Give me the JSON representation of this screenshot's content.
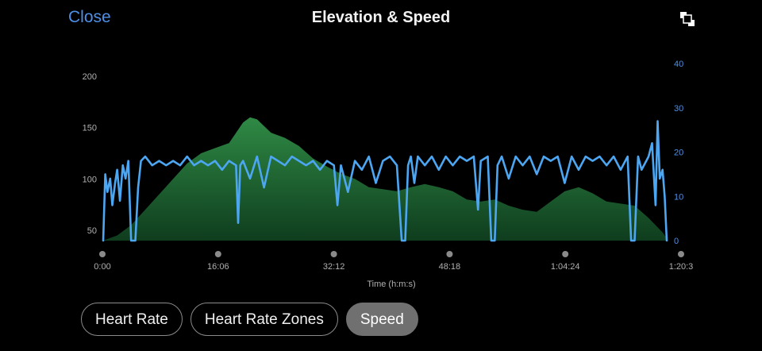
{
  "header": {
    "close_label": "Close",
    "title": "Elevation & Speed",
    "fullscreen_icon": "fullscreen-toggle-icon"
  },
  "colors": {
    "accent": "#4d8fe6",
    "speed_line": "#4da6f2",
    "elevation_fill_top": "#2f8a45",
    "elevation_fill_bottom": "#0f3d1e",
    "axis_text": "#b0b0b0"
  },
  "chips": [
    {
      "label": "Heart Rate",
      "selected": false
    },
    {
      "label": "Heart Rate Zones",
      "selected": false
    },
    {
      "label": "Speed",
      "selected": true
    }
  ],
  "chart_data": {
    "type": "area",
    "title": "",
    "xlabel": "Time (h:m:s)",
    "x_tick_labels": [
      "0:00",
      "16:06",
      "32:12",
      "48:18",
      "1:04:24",
      "1:20:3"
    ],
    "x_range_minutes": [
      0,
      80.6
    ],
    "y_left": {
      "ticks": [
        50,
        100,
        150,
        200
      ],
      "range": [
        40,
        200
      ]
    },
    "y_right": {
      "ticks": [
        0,
        10,
        20,
        30,
        40
      ],
      "range": [
        0,
        40
      ]
    },
    "grid": false,
    "series": [
      {
        "axis": "left",
        "type": "area",
        "points": [
          [
            0,
            40
          ],
          [
            2,
            45
          ],
          [
            4,
            55
          ],
          [
            6,
            70
          ],
          [
            8,
            85
          ],
          [
            10,
            100
          ],
          [
            12,
            115
          ],
          [
            14,
            125
          ],
          [
            16,
            130
          ],
          [
            18,
            135
          ],
          [
            20,
            155
          ],
          [
            21,
            160
          ],
          [
            22,
            158
          ],
          [
            24,
            145
          ],
          [
            26,
            140
          ],
          [
            28,
            132
          ],
          [
            30,
            120
          ],
          [
            32,
            112
          ],
          [
            34,
            105
          ],
          [
            36,
            100
          ],
          [
            38,
            92
          ],
          [
            40,
            90
          ],
          [
            42,
            88
          ],
          [
            44,
            92
          ],
          [
            46,
            95
          ],
          [
            48,
            92
          ],
          [
            50,
            88
          ],
          [
            52,
            80
          ],
          [
            54,
            78
          ],
          [
            56,
            80
          ],
          [
            58,
            74
          ],
          [
            60,
            70
          ],
          [
            62,
            68
          ],
          [
            64,
            78
          ],
          [
            66,
            88
          ],
          [
            68,
            92
          ],
          [
            70,
            86
          ],
          [
            72,
            78
          ],
          [
            74,
            76
          ],
          [
            76,
            74
          ],
          [
            78,
            62
          ],
          [
            80,
            48
          ],
          [
            80.6,
            42
          ]
        ]
      },
      {
        "axis": "right",
        "type": "line",
        "points": [
          [
            0,
            0
          ],
          [
            0.3,
            15
          ],
          [
            0.6,
            11
          ],
          [
            1,
            14
          ],
          [
            1.3,
            8
          ],
          [
            1.7,
            13
          ],
          [
            2,
            16
          ],
          [
            2.4,
            9
          ],
          [
            2.8,
            17
          ],
          [
            3.2,
            14
          ],
          [
            3.6,
            18
          ],
          [
            4,
            0
          ],
          [
            4.6,
            0
          ],
          [
            5,
            12
          ],
          [
            5.4,
            18
          ],
          [
            6,
            19
          ],
          [
            7,
            17
          ],
          [
            8,
            18
          ],
          [
            9,
            17
          ],
          [
            10,
            18
          ],
          [
            11,
            17
          ],
          [
            12,
            19
          ],
          [
            13,
            17
          ],
          [
            14,
            18
          ],
          [
            15,
            17
          ],
          [
            16,
            18
          ],
          [
            17,
            16
          ],
          [
            18,
            18
          ],
          [
            19,
            17
          ],
          [
            19.3,
            4
          ],
          [
            19.6,
            17
          ],
          [
            20,
            18
          ],
          [
            21,
            14
          ],
          [
            22,
            19
          ],
          [
            23,
            12
          ],
          [
            24,
            19
          ],
          [
            25,
            18
          ],
          [
            26,
            17
          ],
          [
            27,
            19
          ],
          [
            28,
            18
          ],
          [
            29,
            17
          ],
          [
            30,
            18
          ],
          [
            31,
            16
          ],
          [
            32,
            18
          ],
          [
            33,
            17
          ],
          [
            33.5,
            8
          ],
          [
            34,
            17
          ],
          [
            35,
            11
          ],
          [
            36,
            18
          ],
          [
            37,
            16
          ],
          [
            38,
            19
          ],
          [
            39,
            13
          ],
          [
            40,
            18
          ],
          [
            41,
            19
          ],
          [
            42,
            17
          ],
          [
            42.7,
            0
          ],
          [
            43.2,
            0
          ],
          [
            43.6,
            17
          ],
          [
            44,
            19
          ],
          [
            44.5,
            13
          ],
          [
            45,
            19
          ],
          [
            46,
            17
          ],
          [
            47,
            19
          ],
          [
            48,
            16
          ],
          [
            49,
            19
          ],
          [
            50,
            17
          ],
          [
            51,
            19
          ],
          [
            52,
            18
          ],
          [
            53,
            19
          ],
          [
            53.6,
            7
          ],
          [
            54,
            18
          ],
          [
            55,
            19
          ],
          [
            55.5,
            0
          ],
          [
            56,
            0
          ],
          [
            56.4,
            17
          ],
          [
            57,
            19
          ],
          [
            58,
            14
          ],
          [
            59,
            19
          ],
          [
            60,
            17
          ],
          [
            61,
            19
          ],
          [
            62,
            15
          ],
          [
            63,
            19
          ],
          [
            64,
            18
          ],
          [
            65,
            19
          ],
          [
            66,
            13
          ],
          [
            67,
            19
          ],
          [
            68,
            16
          ],
          [
            69,
            19
          ],
          [
            70,
            18
          ],
          [
            71,
            19
          ],
          [
            72,
            17
          ],
          [
            73,
            19
          ],
          [
            74,
            16
          ],
          [
            75,
            19
          ],
          [
            75.5,
            0
          ],
          [
            76,
            0
          ],
          [
            76.5,
            19
          ],
          [
            77,
            16
          ],
          [
            78,
            19
          ],
          [
            78.5,
            22
          ],
          [
            79,
            8
          ],
          [
            79.3,
            27
          ],
          [
            79.6,
            14
          ],
          [
            80,
            16
          ],
          [
            80.3,
            10
          ],
          [
            80.6,
            0
          ]
        ]
      }
    ]
  }
}
